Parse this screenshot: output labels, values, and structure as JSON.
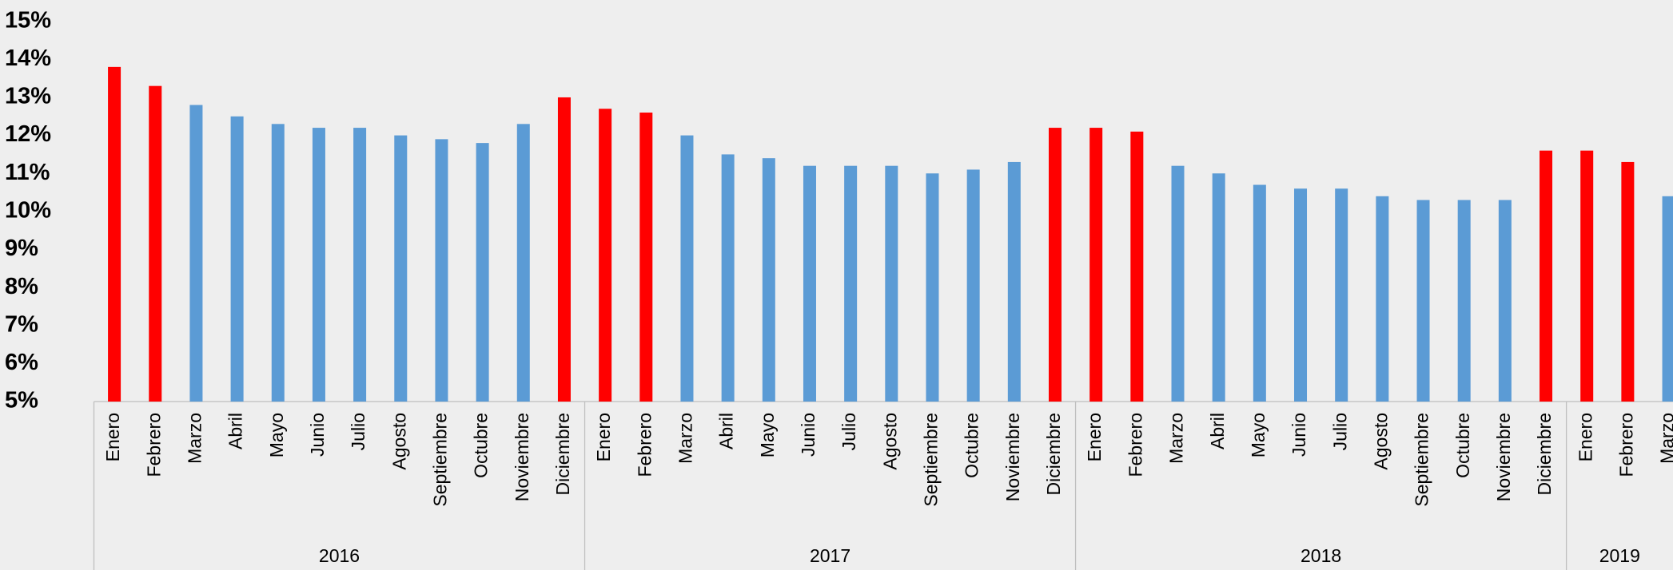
{
  "chart_data": {
    "type": "bar",
    "ylim": [
      5,
      15
    ],
    "yticks": [
      {
        "value": 5,
        "label": "5%"
      },
      {
        "value": 6,
        "label": "6%"
      },
      {
        "value": 7,
        "label": "7%"
      },
      {
        "value": 8,
        "label": "8%"
      },
      {
        "value": 9,
        "label": "9%"
      },
      {
        "value": 10,
        "label": "10%"
      },
      {
        "value": 11,
        "label": "11%"
      },
      {
        "value": 12,
        "label": "12%"
      },
      {
        "value": 13,
        "label": "13%"
      },
      {
        "value": 14,
        "label": "14%"
      },
      {
        "value": 15,
        "label": "15%"
      }
    ],
    "groups": [
      {
        "name": "2016",
        "categories": [
          "Enero",
          "Febrero",
          "Marzo",
          "Abril",
          "Mayo",
          "Junio",
          "Julio",
          "Agosto",
          "Septiembre",
          "Octubre",
          "Noviembre",
          "Diciembre"
        ],
        "values": [
          13.8,
          13.3,
          12.8,
          12.5,
          12.3,
          12.2,
          12.2,
          12.0,
          11.9,
          11.8,
          12.3,
          13.0
        ],
        "colors": [
          "#ff0000",
          "#ff0000",
          "#5b9bd5",
          "#5b9bd5",
          "#5b9bd5",
          "#5b9bd5",
          "#5b9bd5",
          "#5b9bd5",
          "#5b9bd5",
          "#5b9bd5",
          "#5b9bd5",
          "#ff0000"
        ]
      },
      {
        "name": "2017",
        "categories": [
          "Enero",
          "Febrero",
          "Marzo",
          "Abril",
          "Mayo",
          "Junio",
          "Julio",
          "Agosto",
          "Septiembre",
          "Octubre",
          "Noviembre",
          "Diciembre"
        ],
        "values": [
          12.7,
          12.6,
          12.0,
          11.5,
          11.4,
          11.2,
          11.2,
          11.2,
          11.0,
          11.1,
          11.3,
          12.2
        ],
        "colors": [
          "#ff0000",
          "#ff0000",
          "#5b9bd5",
          "#5b9bd5",
          "#5b9bd5",
          "#5b9bd5",
          "#5b9bd5",
          "#5b9bd5",
          "#5b9bd5",
          "#5b9bd5",
          "#5b9bd5",
          "#ff0000"
        ]
      },
      {
        "name": "2018",
        "categories": [
          "Enero",
          "Febrero",
          "Marzo",
          "Abril",
          "Mayo",
          "Junio",
          "Julio",
          "Agosto",
          "Septiembre",
          "Octubre",
          "Noviembre",
          "Diciembre"
        ],
        "values": [
          12.2,
          12.1,
          11.2,
          11.0,
          10.7,
          10.6,
          10.6,
          10.4,
          10.3,
          10.3,
          10.3,
          11.6
        ],
        "colors": [
          "#ff0000",
          "#ff0000",
          "#5b9bd5",
          "#5b9bd5",
          "#5b9bd5",
          "#5b9bd5",
          "#5b9bd5",
          "#5b9bd5",
          "#5b9bd5",
          "#5b9bd5",
          "#5b9bd5",
          "#ff0000"
        ]
      },
      {
        "name": "2019",
        "categories": [
          "Enero",
          "Febrero",
          "Marzo"
        ],
        "values": [
          11.6,
          11.3,
          10.4
        ],
        "colors": [
          "#ff0000",
          "#ff0000",
          "#5b9bd5"
        ]
      }
    ]
  }
}
